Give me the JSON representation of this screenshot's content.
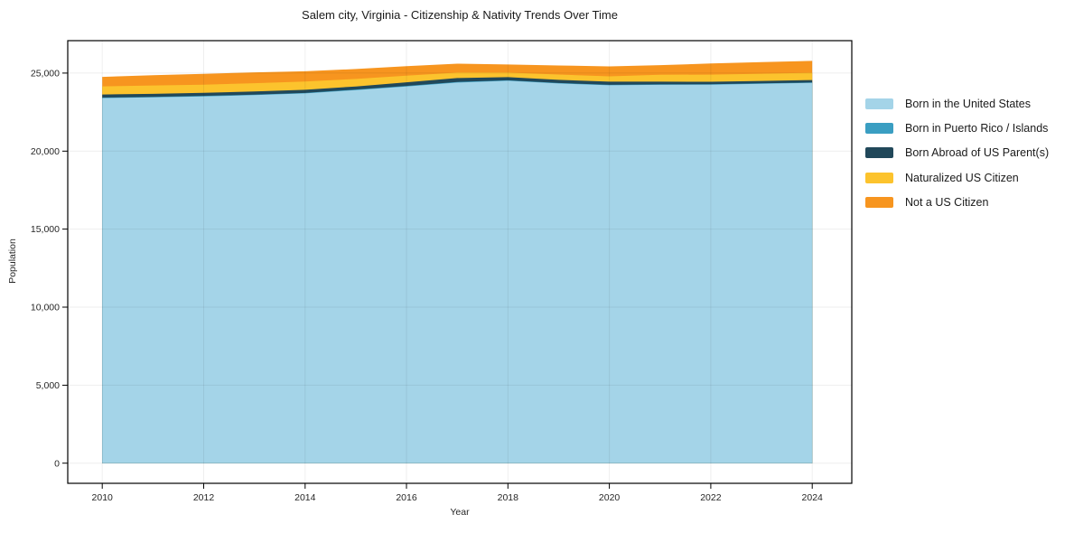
{
  "chart_data": {
    "type": "area",
    "stacked": true,
    "title": "Salem city, Virginia - Citizenship & Nativity Trends Over Time",
    "xlabel": "Year",
    "ylabel": "Population",
    "x": [
      2010,
      2011,
      2012,
      2013,
      2014,
      2015,
      2016,
      2017,
      2018,
      2019,
      2020,
      2021,
      2022,
      2023,
      2024
    ],
    "series": [
      {
        "name": "Born in the United States",
        "color": "#A4D4E8",
        "values": [
          23400,
          23445,
          23510,
          23590,
          23700,
          23915,
          24145,
          24395,
          24510,
          24335,
          24220,
          24250,
          24260,
          24320,
          24375
        ]
      },
      {
        "name": "Born in Puerto Rico / Islands",
        "color": "#3A9EC2",
        "values": [
          30,
          30,
          30,
          30,
          30,
          30,
          35,
          40,
          30,
          30,
          30,
          25,
          25,
          25,
          25
        ]
      },
      {
        "name": "Born Abroad of US Parent(s)",
        "color": "#21485A",
        "values": [
          200,
          195,
          200,
          200,
          200,
          200,
          230,
          250,
          200,
          200,
          200,
          175,
          160,
          155,
          155
        ]
      },
      {
        "name": "Naturalized US Citizen",
        "color": "#FCC32D",
        "values": [
          520,
          540,
          520,
          535,
          535,
          480,
          425,
          345,
          290,
          345,
          345,
          440,
          460,
          460,
          465
        ]
      },
      {
        "name": "Not a US Citizen",
        "color": "#F7951F",
        "values": [
          610,
          650,
          690,
          690,
          655,
          635,
          610,
          575,
          520,
          575,
          635,
          620,
          710,
          750,
          765
        ]
      }
    ],
    "xticks": {
      "values": [
        2010,
        2012,
        2014,
        2016,
        2018,
        2020,
        2022,
        2024
      ],
      "labels": [
        "2010",
        "2012",
        "2014",
        "2016",
        "2018",
        "2020",
        "2022",
        "2024"
      ]
    },
    "yticks": {
      "values": [
        0,
        5000,
        10000,
        15000,
        20000,
        25000
      ],
      "labels": [
        "0",
        "5,000",
        "10,000",
        "15,000",
        "20,000",
        "25,000"
      ]
    },
    "xlim": [
      2009.32,
      2024.78
    ],
    "ylim": [
      -1290,
      27080
    ],
    "grid": true,
    "legend_position": "right"
  }
}
